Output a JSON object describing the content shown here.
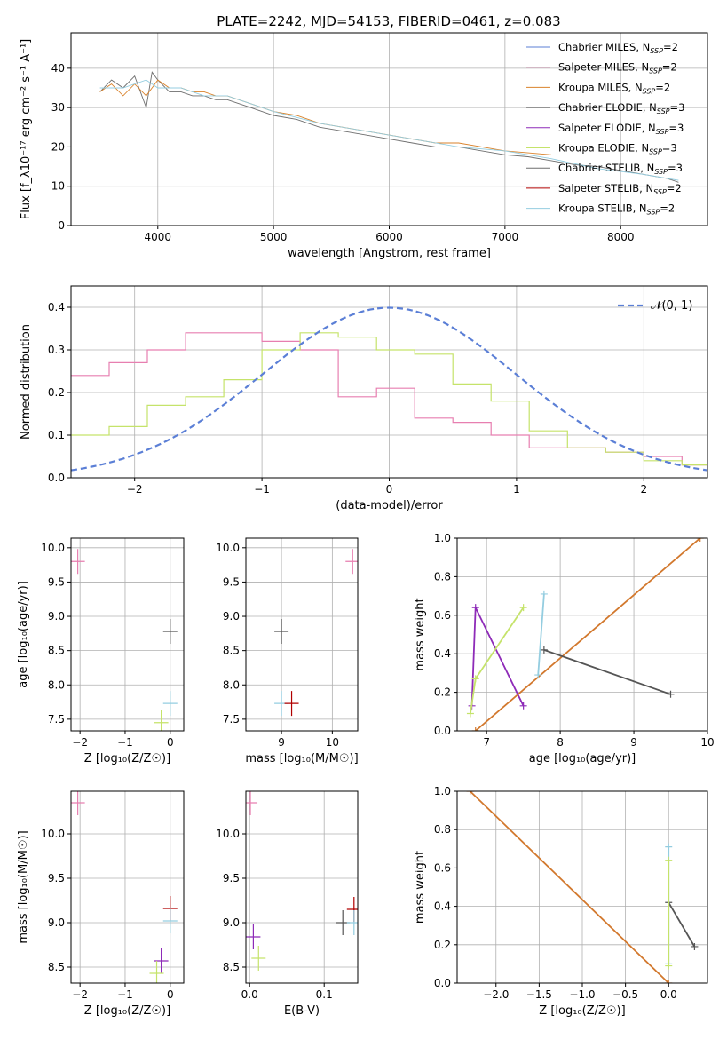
{
  "title": "PLATE=2242, MJD=54153, FIBERID=0461, z=0.083",
  "colors": {
    "chabrier_miles": "#5b7fd6",
    "salpeter_miles": "#e77fb0",
    "kroupa_miles": "#d9822b",
    "chabrier_elodie": "#555555",
    "salpeter_elodie": "#8e2bb8",
    "kroupa_elodie": "#c5e36a",
    "chabrier_stelib": "#6e6e6e",
    "salpeter_stelib": "#b00000",
    "kroupa_stelib": "#94cde0",
    "orange_line": "#d2782d",
    "gauss": "#5b7fd6"
  },
  "chart_data": [
    {
      "id": "spectrum",
      "type": "line",
      "xlabel": "wavelength [Angstrom, rest frame]",
      "ylabel": "Flux [f_λ10⁻¹⁷ erg cm⁻² s⁻¹ A⁻¹]",
      "xlim": [
        3250,
        8750
      ],
      "ylim": [
        0,
        49
      ],
      "xticks": [
        "4000",
        "5000",
        "6000",
        "7000",
        "8000"
      ],
      "yticks": [
        "0",
        "10",
        "20",
        "30",
        "40"
      ],
      "legend_position": "top-right",
      "legend": [
        {
          "base": "Chabrier MILES, N",
          "sub": "SSP",
          "tail": "=2",
          "color_key": "chabrier_miles"
        },
        {
          "base": "Salpeter MILES, N",
          "sub": "SSP",
          "tail": "=2",
          "color_key": "salpeter_miles"
        },
        {
          "base": "Kroupa MILES, N",
          "sub": "SSP",
          "tail": "=2",
          "color_key": "kroupa_miles"
        },
        {
          "base": "Chabrier ELODIE, N",
          "sub": "SSP",
          "tail": "=3",
          "color_key": "chabrier_elodie"
        },
        {
          "base": "Salpeter ELODIE, N",
          "sub": "SSP",
          "tail": "=3",
          "color_key": "salpeter_elodie"
        },
        {
          "base": "Kroupa ELODIE, N",
          "sub": "SSP",
          "tail": "=3",
          "color_key": "kroupa_elodie"
        },
        {
          "base": "Chabrier STELIB, N",
          "sub": "SSP",
          "tail": "=3",
          "color_key": "chabrier_stelib"
        },
        {
          "base": "Salpeter STELIB, N",
          "sub": "SSP",
          "tail": "=2",
          "color_key": "salpeter_stelib"
        },
        {
          "base": "Kroupa STELIB, N",
          "sub": "SSP",
          "tail": "=2",
          "color_key": "kroupa_stelib"
        }
      ],
      "series": [
        {
          "name": "data",
          "color_key": "chabrier_stelib",
          "x": [
            3500,
            3600,
            3700,
            3800,
            3900,
            3950,
            4000,
            4100,
            4200,
            4300,
            4400,
            4500,
            4600,
            4700,
            4800,
            4900,
            5000,
            5200,
            5400,
            5600,
            5800,
            6000,
            6200,
            6400,
            6600,
            6800,
            7000,
            7200,
            7400,
            7600,
            7800,
            8000,
            8200,
            8400,
            8500
          ],
          "y": [
            34,
            37,
            35,
            38,
            30,
            39,
            37,
            34,
            34,
            33,
            33,
            32,
            32,
            31,
            30,
            29,
            28,
            27,
            25,
            24,
            23,
            22,
            21,
            20,
            20,
            19,
            18,
            17.5,
            16.5,
            15.5,
            15,
            14,
            13,
            12,
            11
          ]
        },
        {
          "name": "model",
          "color_key": "kroupa_miles",
          "x": [
            3500,
            3600,
            3700,
            3800,
            3900,
            4000,
            4100,
            4200,
            4300,
            4400,
            4500,
            4600,
            4800,
            5000,
            5200,
            5400,
            5600,
            5800,
            6000,
            6200,
            6400,
            6600,
            6800,
            7000,
            7200,
            7400
          ],
          "y": [
            34,
            36,
            33,
            36,
            33,
            37,
            35,
            35,
            34,
            34,
            33,
            33,
            31,
            29,
            28,
            26,
            25,
            24,
            23,
            22,
            21,
            21,
            20,
            19,
            18.5,
            18
          ]
        },
        {
          "name": "model-stelib",
          "color_key": "kroupa_stelib",
          "x": [
            3500,
            3700,
            3900,
            4000,
            4200,
            4400,
            4600,
            4800,
            5000,
            5400,
            5800,
            6200,
            6600,
            7000,
            7400,
            7800,
            8200,
            8500
          ],
          "y": [
            35,
            35,
            37,
            35,
            35,
            33,
            33,
            31,
            29,
            26,
            24,
            22,
            20,
            19,
            17,
            14.5,
            13,
            11.5
          ]
        }
      ]
    },
    {
      "id": "residuals",
      "type": "line",
      "xlabel": "(data-model)/error",
      "ylabel": "Normed distribution",
      "xlim": [
        -2.5,
        2.5
      ],
      "ylim": [
        0,
        0.45
      ],
      "xticks": [
        "−2",
        "−1",
        "0",
        "1",
        "2"
      ],
      "yticks": [
        "0.0",
        "0.1",
        "0.2",
        "0.3",
        "0.4"
      ],
      "legend_position": "top-right",
      "legend_label": "𝒩(0, 1)",
      "series": [
        {
          "name": "miles",
          "color_key": "salpeter_miles",
          "x": [
            -2.5,
            -2.2,
            -1.9,
            -1.6,
            -1.3,
            -1.0,
            -0.7,
            -0.4,
            -0.1,
            0.2,
            0.5,
            0.8,
            1.1,
            1.4,
            1.7,
            2.0,
            2.3,
            2.5
          ],
          "y": [
            0.24,
            0.27,
            0.3,
            0.34,
            0.34,
            0.32,
            0.3,
            0.19,
            0.21,
            0.14,
            0.13,
            0.1,
            0.07,
            0.07,
            0.06,
            0.05,
            0.03,
            0.03
          ]
        },
        {
          "name": "elodie",
          "color_key": "kroupa_elodie",
          "x": [
            -2.5,
            -2.2,
            -1.9,
            -1.6,
            -1.3,
            -1.0,
            -0.7,
            -0.4,
            -0.1,
            0.2,
            0.5,
            0.8,
            1.1,
            1.4,
            1.7,
            2.0,
            2.3,
            2.5
          ],
          "y": [
            0.1,
            0.12,
            0.17,
            0.19,
            0.23,
            0.3,
            0.34,
            0.33,
            0.3,
            0.29,
            0.22,
            0.18,
            0.11,
            0.07,
            0.06,
            0.04,
            0.03,
            0.03
          ]
        },
        {
          "name": "N(0,1)",
          "color_key": "gauss",
          "function": "normal",
          "mu": 0,
          "sigma": 1
        }
      ]
    },
    {
      "id": "age-Z",
      "type": "scatter",
      "xlabel": "Z [log₁₀(Z/Z☉)]",
      "ylabel": "age  [log₁₀(age/yr)]",
      "xlim": [
        -2.2,
        0.3
      ],
      "ylim": [
        7.33,
        10.14
      ],
      "xticks": [
        "−2",
        "−1",
        "0"
      ],
      "yticks": [
        "7.5",
        "8.0",
        "8.5",
        "9.0",
        "9.5",
        "10.0"
      ],
      "points": [
        {
          "x": 0.0,
          "y": 8.78,
          "color_key": "chabrier_elodie"
        },
        {
          "x": 0.0,
          "y": 7.73,
          "color_key": "kroupa_stelib"
        },
        {
          "x": -0.2,
          "y": 7.45,
          "color_key": "kroupa_elodie"
        },
        {
          "x": -2.05,
          "y": 9.8,
          "color_key": "salpeter_miles"
        }
      ]
    },
    {
      "id": "age-mass",
      "type": "scatter",
      "xlabel": "mass [log₁₀(M/M☉)]",
      "ylabel": "",
      "xlim": [
        8.3,
        10.5
      ],
      "ylim": [
        7.33,
        10.14
      ],
      "xticks": [
        "9",
        "10"
      ],
      "yticks": [
        "7.5",
        "8.0",
        "8.5",
        "9.0",
        "9.5",
        "10.0"
      ],
      "points": [
        {
          "x": 9.0,
          "y": 8.78,
          "color_key": "chabrier_elodie"
        },
        {
          "x": 9.0,
          "y": 7.73,
          "color_key": "kroupa_stelib"
        },
        {
          "x": 9.2,
          "y": 7.73,
          "color_key": "salpeter_stelib"
        },
        {
          "x": 10.4,
          "y": 9.8,
          "color_key": "salpeter_miles"
        }
      ]
    },
    {
      "id": "mw-age",
      "type": "line",
      "xlabel": "age  [log₁₀(age/yr)]",
      "ylabel": "mass weight",
      "xlim": [
        6.6,
        10
      ],
      "ylim": [
        0,
        1
      ],
      "xticks": [
        "7",
        "8",
        "9",
        "10"
      ],
      "yticks": [
        "0.0",
        "0.2",
        "0.4",
        "0.6",
        "0.8",
        "1.0"
      ],
      "series": [
        {
          "name": "miles",
          "color_key": "orange_line",
          "x": [
            6.85,
            9.9
          ],
          "y": [
            0.0,
            1.0
          ]
        },
        {
          "name": "salpeter-elodie",
          "color_key": "salpeter_elodie",
          "x": [
            6.8,
            6.85,
            7.5
          ],
          "y": [
            0.13,
            0.64,
            0.13
          ]
        },
        {
          "name": "kroupa-elodie",
          "color_key": "kroupa_elodie",
          "x": [
            6.78,
            6.85,
            7.5
          ],
          "y": [
            0.09,
            0.27,
            0.64
          ]
        },
        {
          "name": "kroupa-stelib",
          "color_key": "kroupa_stelib",
          "x": [
            7.7,
            7.78
          ],
          "y": [
            0.29,
            0.71
          ]
        },
        {
          "name": "chabrier-elodie",
          "color_key": "chabrier_elodie",
          "x": [
            7.78,
            9.5
          ],
          "y": [
            0.42,
            0.19
          ]
        }
      ]
    },
    {
      "id": "mass-Z",
      "type": "scatter",
      "xlabel": "Z [log₁₀(Z/Z☉)]",
      "ylabel": "mass [log₁₀(M/M☉)]",
      "xlim": [
        -2.2,
        0.3
      ],
      "ylim": [
        8.32,
        10.48
      ],
      "xticks": [
        "−2",
        "−1",
        "0"
      ],
      "yticks": [
        "8.5",
        "9.0",
        "9.5",
        "10.0"
      ],
      "points": [
        {
          "x": 0.0,
          "y": 9.16,
          "color_key": "salpeter_stelib"
        },
        {
          "x": 0.0,
          "y": 9.02,
          "color_key": "kroupa_stelib"
        },
        {
          "x": -0.2,
          "y": 8.57,
          "color_key": "salpeter_elodie"
        },
        {
          "x": -0.3,
          "y": 8.43,
          "color_key": "kroupa_elodie"
        },
        {
          "x": -2.05,
          "y": 10.35,
          "color_key": "salpeter_miles"
        }
      ]
    },
    {
      "id": "mass-EBV",
      "type": "scatter",
      "xlabel": "E(B-V)",
      "ylabel": "",
      "xlim": [
        -0.005,
        0.145
      ],
      "ylim": [
        8.32,
        10.48
      ],
      "xticks": [
        "0.0",
        "0.1"
      ],
      "yticks": [
        "8.5",
        "9.0",
        "9.5",
        "10.0"
      ],
      "points": [
        {
          "x": 0.005,
          "y": 8.84,
          "color_key": "salpeter_elodie"
        },
        {
          "x": 0.012,
          "y": 8.6,
          "color_key": "kroupa_elodie"
        },
        {
          "x": 0.125,
          "y": 9.0,
          "color_key": "chabrier_elodie"
        },
        {
          "x": 0.14,
          "y": 9.15,
          "color_key": "salpeter_stelib"
        },
        {
          "x": 0.14,
          "y": 9.0,
          "color_key": "kroupa_stelib"
        },
        {
          "x": 0.001,
          "y": 10.35,
          "color_key": "salpeter_miles"
        }
      ]
    },
    {
      "id": "mw-Z",
      "type": "line",
      "xlabel": "Z [log₁₀(Z/Z☉)]",
      "ylabel": "mass weight",
      "xlim": [
        -2.45,
        0.45
      ],
      "ylim": [
        0,
        1
      ],
      "xticks": [
        "−2.0",
        "−1.5",
        "−1.0",
        "−0.5",
        "0.0"
      ],
      "yticks": [
        "0.0",
        "0.2",
        "0.4",
        "0.6",
        "0.8",
        "1.0"
      ],
      "series": [
        {
          "name": "miles",
          "color_key": "orange_line",
          "x": [
            -2.3,
            0.0
          ],
          "y": [
            1.0,
            0.0
          ]
        },
        {
          "name": "chabrier-elodie",
          "color_key": "chabrier_elodie",
          "x": [
            0.0,
            0.3
          ],
          "y": [
            0.42,
            0.19
          ]
        },
        {
          "name": "kroupa-stelib",
          "color_key": "kroupa_stelib",
          "x": [
            0.0,
            0.0
          ],
          "y": [
            0.1,
            0.71
          ]
        },
        {
          "name": "kroupa-elodie",
          "color_key": "kroupa_elodie",
          "x": [
            0.0,
            0.0
          ],
          "y": [
            0.09,
            0.64
          ]
        }
      ]
    }
  ]
}
